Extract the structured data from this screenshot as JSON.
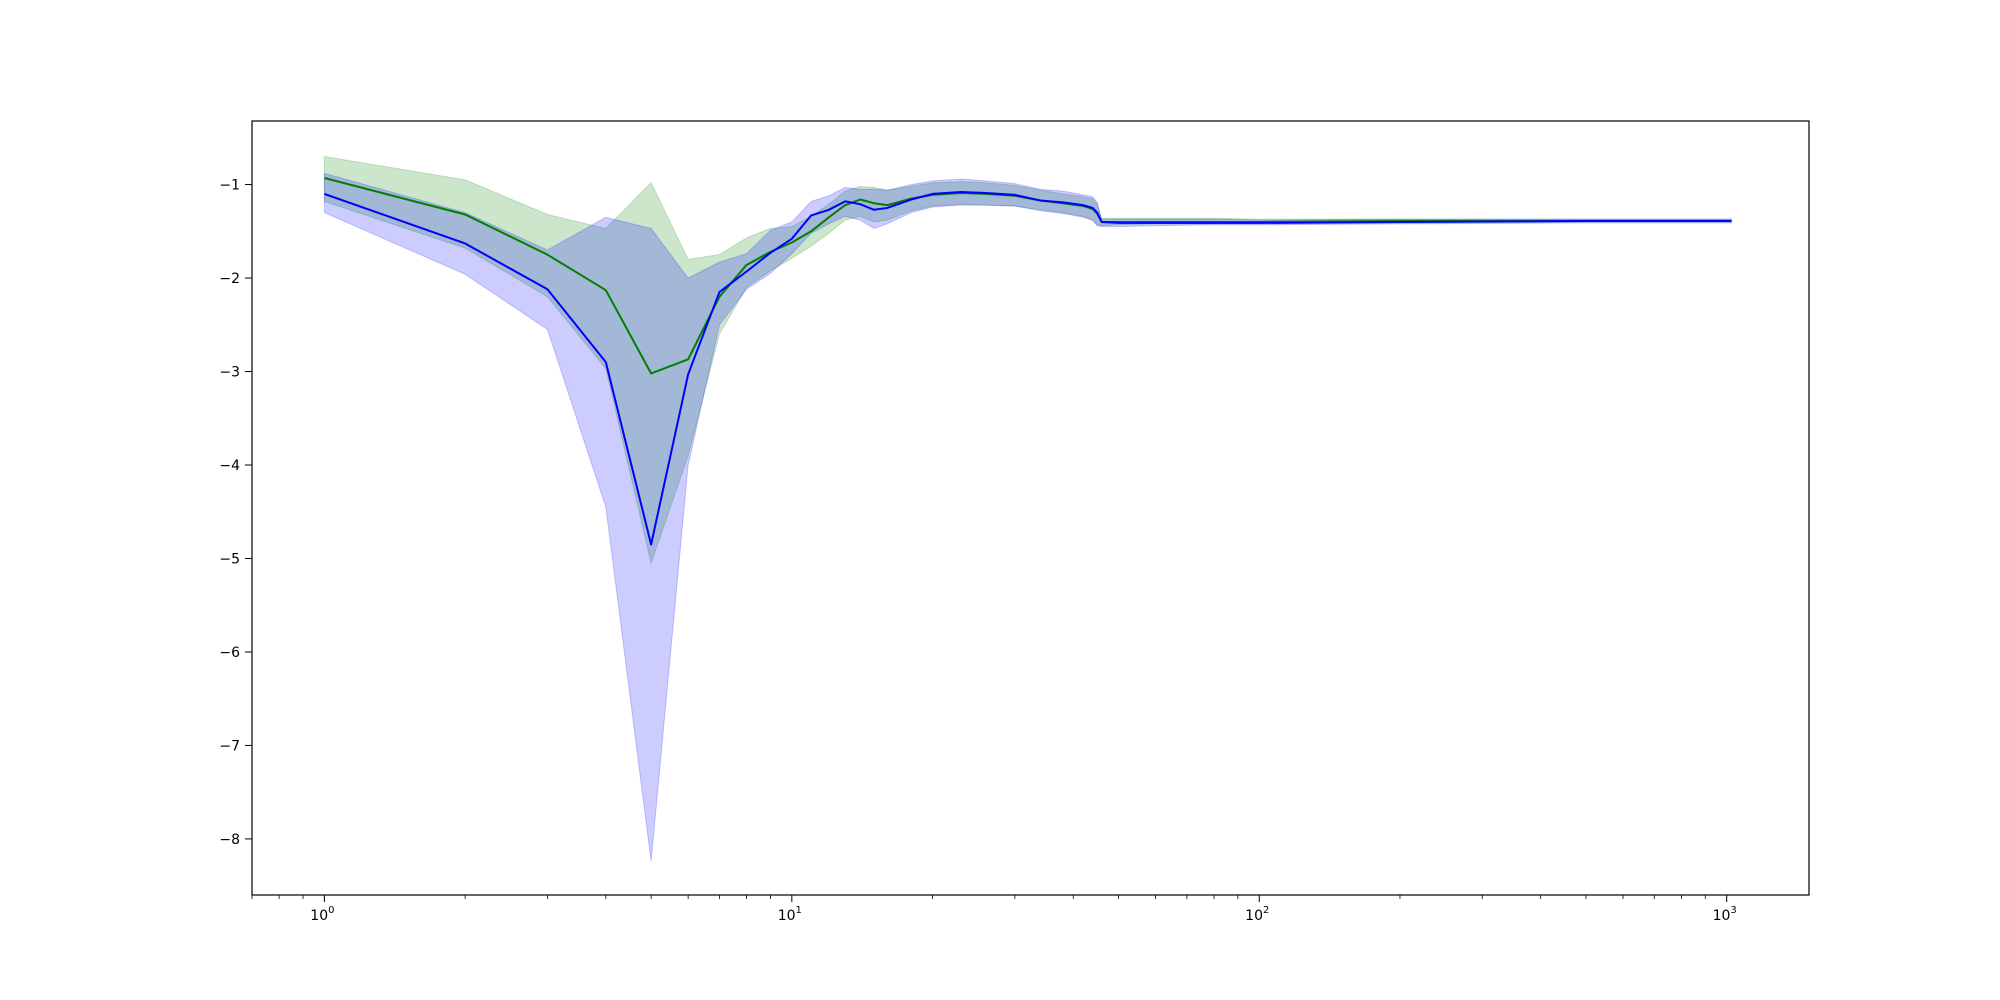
{
  "chart_data": {
    "type": "line",
    "title": "",
    "xlabel": "",
    "ylabel": "",
    "xscale": "log",
    "xlim": [
      0.7,
      1500
    ],
    "ylim": [
      -8.6,
      -0.32
    ],
    "grid": false,
    "legend": "none",
    "x_ticks": [
      {
        "value": 1,
        "base": "10",
        "exp": "0"
      },
      {
        "value": 10,
        "base": "10",
        "exp": "1"
      },
      {
        "value": 100,
        "base": "10",
        "exp": "2"
      },
      {
        "value": 1000,
        "base": "10",
        "exp": "3"
      }
    ],
    "y_ticks": [
      {
        "value": -1,
        "label": "−1"
      },
      {
        "value": -2,
        "label": "−2"
      },
      {
        "value": -3,
        "label": "−3"
      },
      {
        "value": -4,
        "label": "−4"
      },
      {
        "value": -5,
        "label": "−5"
      },
      {
        "value": -6,
        "label": "−6"
      },
      {
        "value": -7,
        "label": "−7"
      },
      {
        "value": -8,
        "label": "−8"
      }
    ],
    "series": [
      {
        "color": "#008000",
        "band_color": "#008000",
        "band_opacity": 0.2,
        "x": [
          1,
          2,
          3,
          4,
          5,
          6,
          7,
          8,
          9,
          10,
          11,
          12,
          13,
          14,
          15,
          16,
          18,
          20,
          23,
          26,
          30,
          34,
          38,
          42,
          44,
          45,
          46,
          50,
          60,
          80,
          100,
          200,
          500,
          1024
        ],
        "y": [
          -0.93,
          -1.32,
          -1.75,
          -2.13,
          -3.02,
          -2.87,
          -2.2,
          -1.86,
          -1.72,
          -1.62,
          -1.5,
          -1.35,
          -1.22,
          -1.16,
          -1.2,
          -1.22,
          -1.15,
          -1.11,
          -1.09,
          -1.1,
          -1.12,
          -1.17,
          -1.2,
          -1.23,
          -1.26,
          -1.31,
          -1.4,
          -1.4,
          -1.4,
          -1.4,
          -1.4,
          -1.39,
          -1.39,
          -1.39
        ],
        "lower": [
          -1.18,
          -1.68,
          -2.2,
          -2.97,
          -5.05,
          -3.9,
          -2.6,
          -2.1,
          -1.92,
          -1.79,
          -1.66,
          -1.52,
          -1.38,
          -1.34,
          -1.4,
          -1.38,
          -1.28,
          -1.23,
          -1.21,
          -1.22,
          -1.23,
          -1.27,
          -1.3,
          -1.34,
          -1.38,
          -1.43,
          -1.44,
          -1.43,
          -1.42,
          -1.42,
          -1.42,
          -1.41,
          -1.4,
          -1.4
        ],
        "upper": [
          -0.7,
          -0.95,
          -1.32,
          -1.47,
          -0.98,
          -1.8,
          -1.75,
          -1.57,
          -1.47,
          -1.45,
          -1.34,
          -1.21,
          -1.07,
          -1.02,
          -1.03,
          -1.06,
          -1.02,
          -0.98,
          -0.97,
          -0.98,
          -1.01,
          -1.06,
          -1.1,
          -1.13,
          -1.15,
          -1.21,
          -1.36,
          -1.36,
          -1.36,
          -1.36,
          -1.37,
          -1.37,
          -1.37,
          -1.37
        ]
      },
      {
        "color": "#0000ff",
        "band_color": "#0000ff",
        "band_opacity": 0.2,
        "x": [
          1,
          2,
          3,
          4,
          5,
          6,
          7,
          8,
          9,
          10,
          11,
          12,
          13,
          14,
          15,
          16,
          18,
          20,
          23,
          26,
          30,
          34,
          38,
          42,
          44,
          45,
          46,
          50,
          60,
          80,
          100,
          200,
          500,
          1024
        ],
        "y": [
          -1.1,
          -1.63,
          -2.12,
          -2.9,
          -4.85,
          -3.03,
          -2.15,
          -1.93,
          -1.73,
          -1.58,
          -1.33,
          -1.27,
          -1.18,
          -1.21,
          -1.27,
          -1.25,
          -1.16,
          -1.1,
          -1.08,
          -1.09,
          -1.11,
          -1.17,
          -1.19,
          -1.22,
          -1.25,
          -1.3,
          -1.4,
          -1.41,
          -1.41,
          -1.41,
          -1.41,
          -1.4,
          -1.39,
          -1.39
        ],
        "lower": [
          -1.3,
          -1.96,
          -2.55,
          -4.45,
          -8.24,
          -4.0,
          -2.5,
          -2.12,
          -1.95,
          -1.74,
          -1.52,
          -1.42,
          -1.34,
          -1.38,
          -1.47,
          -1.42,
          -1.3,
          -1.24,
          -1.22,
          -1.22,
          -1.23,
          -1.28,
          -1.31,
          -1.35,
          -1.38,
          -1.44,
          -1.45,
          -1.45,
          -1.44,
          -1.43,
          -1.43,
          -1.42,
          -1.41,
          -1.41
        ],
        "upper": [
          -0.88,
          -1.3,
          -1.7,
          -1.35,
          -1.47,
          -2.0,
          -1.83,
          -1.74,
          -1.49,
          -1.4,
          -1.18,
          -1.12,
          -1.03,
          -1.05,
          -1.05,
          -1.06,
          -1.0,
          -0.96,
          -0.94,
          -0.96,
          -0.99,
          -1.05,
          -1.07,
          -1.11,
          -1.13,
          -1.19,
          -1.37,
          -1.37,
          -1.37,
          -1.37,
          -1.38,
          -1.37,
          -1.37,
          -1.37
        ]
      }
    ]
  }
}
